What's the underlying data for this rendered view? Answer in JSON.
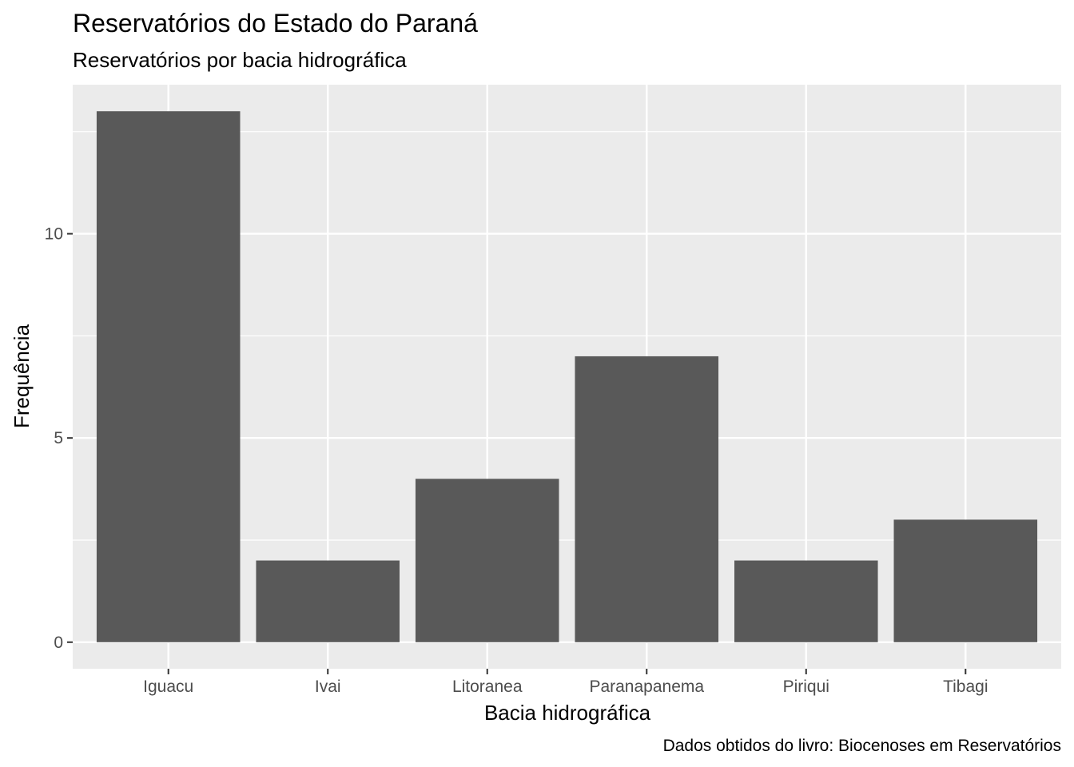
{
  "chart_data": {
    "type": "bar",
    "title": "Reservatórios do Estado do Paraná",
    "subtitle": "Reservatórios por bacia hidrográfica",
    "xlabel": "Bacia hidrográfica",
    "ylabel": "Frequência",
    "caption": "Dados obtidos do livro: Biocenoses em Reservatórios",
    "categories": [
      "Iguacu",
      "Ivai",
      "Litoranea",
      "Paranapanema",
      "Piriqui",
      "Tibagi"
    ],
    "values": [
      13,
      2,
      4,
      7,
      2,
      3
    ],
    "ylim": [
      -0.65,
      13.65
    ],
    "yticks": [
      0,
      5,
      10
    ],
    "grid": true,
    "colors": {
      "bar": "#595959",
      "panel_background": "#ebebeb",
      "grid_line": "#ffffff",
      "tick_text": "#4d4d4d",
      "tick_mark": "#333333"
    }
  }
}
